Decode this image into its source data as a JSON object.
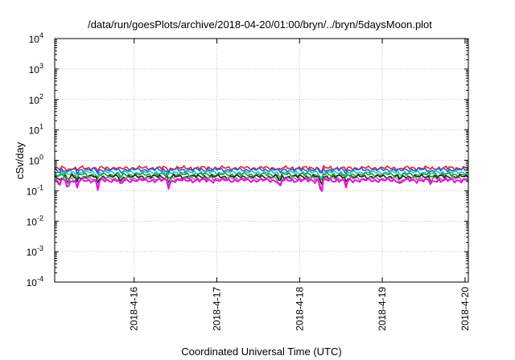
{
  "chart_data": {
    "type": "line",
    "title": "/data/run/goesPlots/archive/2018-04-20/01:00/bryn/../bryn/5daysMoon.plot",
    "xlabel": "Coordinated Universal Time (UTC)",
    "ylabel": "cSv/day",
    "y_scale": "log",
    "ylim": [
      0.0001,
      10000
    ],
    "y_ticks": [
      {
        "value": 0.0001,
        "base": "10",
        "exp": "-4"
      },
      {
        "value": 0.001,
        "base": "10",
        "exp": "-3"
      },
      {
        "value": 0.01,
        "base": "10",
        "exp": "-2"
      },
      {
        "value": 0.1,
        "base": "10",
        "exp": "-1"
      },
      {
        "value": 1,
        "base": "10",
        "exp": "0"
      },
      {
        "value": 10,
        "base": "10",
        "exp": "1"
      },
      {
        "value": 100,
        "base": "10",
        "exp": "2"
      },
      {
        "value": 1000,
        "base": "10",
        "exp": "3"
      },
      {
        "value": 10000,
        "base": "10",
        "exp": "4"
      }
    ],
    "xlim": [
      "2018-04-15 01:00",
      "2018-04-20 01:00"
    ],
    "x_ticks": [
      {
        "label": "2018-4-16",
        "day": 0.96
      },
      {
        "label": "2018-4-17",
        "day": 1.96
      },
      {
        "label": "2018-4-18",
        "day": 2.96
      },
      {
        "label": "2018-4-19",
        "day": 3.96
      },
      {
        "label": "2018-4-20",
        "day": 4.96
      }
    ],
    "grid": true,
    "series": [
      {
        "color": "#e8202a",
        "base": 0.56
      },
      {
        "color": "#1f5fe0",
        "base": 0.49
      },
      {
        "color": "#22c4c8",
        "base": 0.4
      },
      {
        "color": "#22a030",
        "base": 0.34
      },
      {
        "color": "#222222",
        "base": 0.29
      },
      {
        "color": "#888888",
        "base": 0.25
      },
      {
        "color": "#ee10e0",
        "base": 0.22
      }
    ],
    "dips": [
      {
        "day": 0.05,
        "factor": 0.6
      },
      {
        "day": 0.16,
        "factor": 0.5
      },
      {
        "day": 0.27,
        "factor": 0.55
      },
      {
        "day": 0.52,
        "factor": 0.5
      },
      {
        "day": 0.8,
        "factor": 0.6
      },
      {
        "day": 1.38,
        "factor": 0.55
      },
      {
        "day": 2.72,
        "factor": 0.5
      },
      {
        "day": 3.22,
        "factor": 0.25
      },
      {
        "day": 3.52,
        "factor": 0.6
      },
      {
        "day": 4.18,
        "factor": 0.7
      },
      {
        "day": 4.55,
        "factor": 0.7
      }
    ]
  }
}
